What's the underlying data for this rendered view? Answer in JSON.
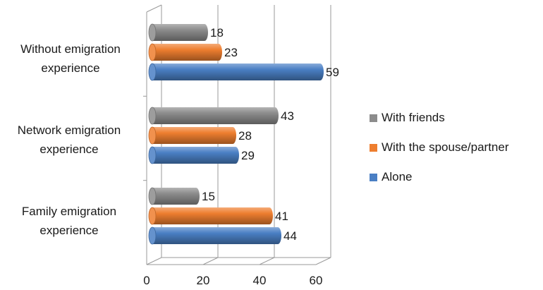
{
  "chart_data": {
    "type": "bar",
    "orientation": "horizontal",
    "style": "3d-cylinder",
    "categories": [
      "Without emigration experience",
      "Network emigration experience",
      "Family emigration experience"
    ],
    "category_lines": [
      [
        "Without emigration",
        "experience"
      ],
      [
        "Network emigration",
        "experience"
      ],
      [
        "Family emigration",
        "experience"
      ]
    ],
    "series": [
      {
        "name": "With friends",
        "color": "#8c8c8c",
        "values": [
          18,
          43,
          15
        ]
      },
      {
        "name": "With the spouse/partner",
        "color": "#ee7e2f",
        "values": [
          23,
          28,
          41
        ]
      },
      {
        "name": "Alone",
        "color": "#4a7fc4",
        "values": [
          59,
          29,
          44
        ]
      }
    ],
    "legend_order": [
      0,
      1,
      2
    ],
    "legend_position": "right",
    "xlim": [
      0,
      60
    ],
    "xticks": [
      "0",
      "20",
      "40",
      "60"
    ],
    "grid": true
  }
}
